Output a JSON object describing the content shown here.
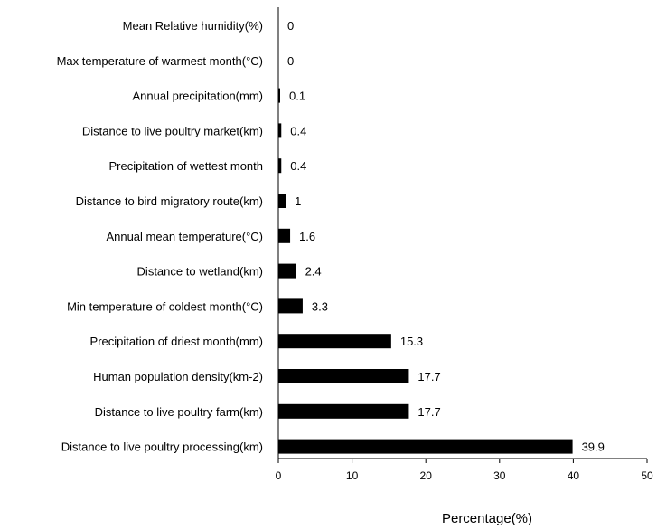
{
  "chart_data": {
    "type": "bar",
    "orientation": "horizontal",
    "categories": [
      "Mean Relative  humidity(%)",
      "Max temperature of warmest month(°C)",
      "Annual precipitation(mm)",
      "Distance to live poultry  market(km)",
      "Precipitation of wettest month",
      "Distance to bird migratory route(km)",
      "Annual mean temperature(°C)",
      "Distance to wetland(km)",
      "Min temperature of coldest month(°C)",
      "Precipitation of driest month(mm)",
      "Human population density(km-2)",
      "Distance to live poultry farm(km)",
      "Distance to live poultry processing(km)"
    ],
    "values": [
      0,
      0,
      0.1,
      0.4,
      0.4,
      1,
      1.6,
      2.4,
      3.3,
      15.3,
      17.7,
      17.7,
      39.9
    ],
    "value_labels": [
      "0",
      "0",
      "0.1",
      "0.4",
      "0.4",
      "1",
      "1.6",
      "2.4",
      "3.3",
      "15.3",
      "17.7",
      "17.7",
      "39.9"
    ],
    "xlabel": "Percentage(%)",
    "ylabel": "",
    "xlim": [
      0,
      50
    ],
    "xticks": [
      "0",
      "10",
      "20",
      "30",
      "40",
      "50"
    ],
    "bar_color": "#000000",
    "grid": false
  }
}
